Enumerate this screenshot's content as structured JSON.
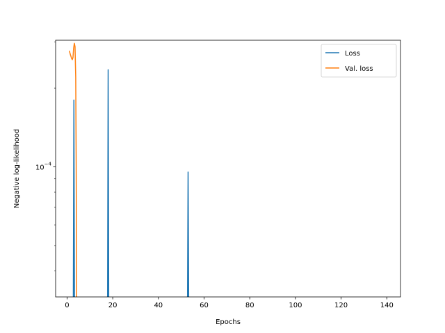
{
  "chart_data": {
    "type": "line",
    "xlabel": "Epochs",
    "ylabel": "Negative log-likelihood",
    "xlim": [
      -5,
      146
    ],
    "ylim": [
      3.18e-05,
      0.000305
    ],
    "yscale": "log",
    "x_ticks": [
      0,
      20,
      40,
      60,
      80,
      100,
      120,
      140
    ],
    "x_tick_labels": [
      "0",
      "20",
      "40",
      "60",
      "80",
      "100",
      "120",
      "140"
    ],
    "y_ticks": [
      0.0001
    ],
    "y_tick_labels": [
      {
        "base": "10",
        "exp": "−4"
      }
    ],
    "grid": false,
    "legend_position": "top-right",
    "series": [
      {
        "name": "Loss",
        "color": "#1f77b4",
        "spikes": [
          {
            "x": 3,
            "y": 0.00018
          },
          {
            "x": 18,
            "y": 0.000235
          },
          {
            "x": 53,
            "y": 9.55e-05
          }
        ]
      },
      {
        "name": "Val. loss",
        "color": "#ff7f0e",
        "points": [
          {
            "x": 1.0,
            "y": 0.000278
          },
          {
            "x": 1.5,
            "y": 0.000268
          },
          {
            "x": 2.0,
            "y": 0.00026
          },
          {
            "x": 2.3,
            "y": 0.000257
          },
          {
            "x": 2.6,
            "y": 0.000262
          },
          {
            "x": 2.9,
            "y": 0.000285
          },
          {
            "x": 3.2,
            "y": 0.000297
          },
          {
            "x": 3.5,
            "y": 0.000288
          },
          {
            "x": 3.8,
            "y": 0.00022
          },
          {
            "x": 4.0,
            "y": 0.000105
          },
          {
            "x": 4.2,
            "y": 3.18e-05
          }
        ]
      }
    ]
  }
}
